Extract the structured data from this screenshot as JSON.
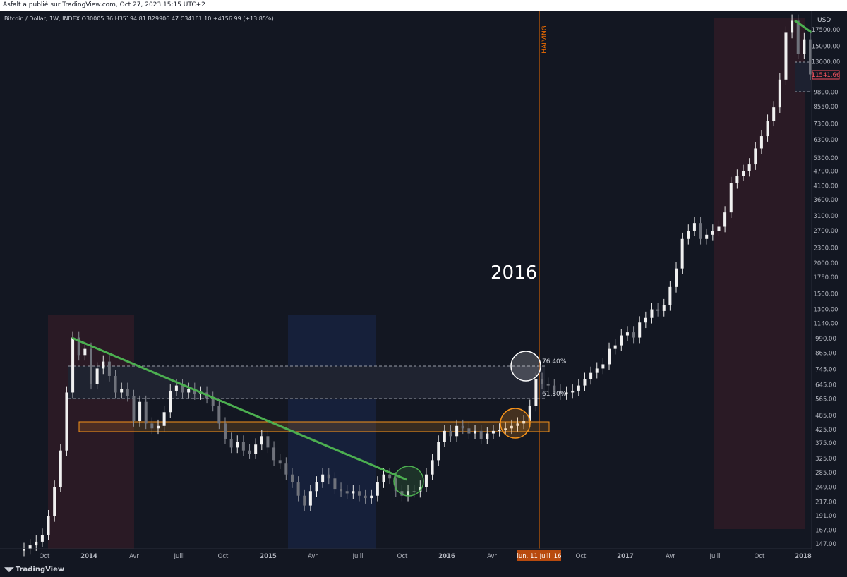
{
  "publisher_line": "Asfalt a publié sur TradingView.com, Oct 27, 2023 15:15 UTC+2",
  "symbol_line": "Bitcoin / Dollar, 1W, INDEX  O30005.36  H35194.81  B29906.47  C34161.10  +4156.99 (+13.85%)",
  "currency": "USD",
  "last_price_label": "11541.66",
  "annotation_text": "2016",
  "halving_label": "HALVING",
  "fib_labels": [
    "76.40%",
    "61.80%"
  ],
  "crosshair_date_label": "lun. 11 Juill '16",
  "footer_brand": "TradingView",
  "colors": {
    "background": "#131722",
    "candle": "#e8e8e8",
    "trendline": "#4caf50",
    "orange": "#f7931a",
    "halving": "#ef6c00",
    "last_price": "#f7525f"
  },
  "chart_data": {
    "type": "candlestick",
    "title": "",
    "xlabel": "",
    "ylabel": "",
    "y_scale": "log",
    "ylim": [
      137,
      22500
    ],
    "x_ticks": [
      "Oct",
      "2014",
      "Avr",
      "Juill",
      "Oct",
      "2015",
      "Avr",
      "Juill",
      "Oct",
      "2016",
      "Avr",
      "Juill",
      "Oct",
      "2017",
      "Avr",
      "Juill",
      "Oct",
      "2018"
    ],
    "y_ticks": [
      17500,
      15000,
      13000,
      9800,
      8550,
      7300,
      6300,
      5300,
      4700,
      4100,
      3600,
      3100,
      2700,
      2300,
      2000,
      1750,
      1500,
      1300,
      1140,
      990,
      865,
      745,
      645,
      565,
      485,
      425,
      375,
      325,
      285,
      249,
      217,
      191,
      167,
      147
    ],
    "y_tick_labels": [
      "17500.00",
      "15000.00",
      "13000.00",
      "9800.00",
      "8550.00",
      "7300.00",
      "6300.00",
      "5300.00",
      "4700.00",
      "4100.00",
      "3600.00",
      "3100.00",
      "2700.00",
      "2300.00",
      "2000.00",
      "1750.00",
      "1500.00",
      "1300.00",
      "1140.00",
      "990.00",
      "865.00",
      "745.00",
      "645.00",
      "565.00",
      "485.00",
      "425.00",
      "375.00",
      "325.00",
      "285.00",
      "249.00",
      "217.00",
      "191.00",
      "167.00",
      "147.00"
    ],
    "closes": [
      140,
      145,
      150,
      160,
      190,
      250,
      350,
      600,
      1000,
      850,
      900,
      650,
      750,
      800,
      700,
      600,
      620,
      580,
      460,
      550,
      450,
      430,
      440,
      500,
      610,
      640,
      600,
      620,
      590,
      600,
      570,
      530,
      450,
      390,
      360,
      380,
      350,
      340,
      370,
      400,
      360,
      320,
      310,
      280,
      260,
      230,
      210,
      240,
      260,
      280,
      270,
      245,
      240,
      235,
      240,
      230,
      225,
      230,
      260,
      280,
      270,
      240,
      230,
      240,
      238,
      250,
      280,
      320,
      380,
      420,
      400,
      440,
      430,
      410,
      420,
      390,
      410,
      420,
      425,
      430,
      440,
      450,
      460,
      530,
      680,
      650,
      640,
      610,
      590,
      600,
      610,
      640,
      680,
      720,
      750,
      780,
      900,
      930,
      1020,
      1050,
      1000,
      1150,
      1200,
      1300,
      1280,
      1350,
      1600,
      1900,
      2500,
      2700,
      2900,
      2500,
      2600,
      2700,
      2800,
      3200,
      4200,
      4500,
      4700,
      5000,
      5800,
      6500,
      7500,
      8500,
      11000,
      17000,
      19000,
      14000,
      16000,
      11541
    ],
    "levels": {
      "fib_76_4": 760,
      "fib_61_8": 560,
      "orange_zone": [
        420,
        460
      ]
    },
    "trendlines": [
      {
        "from": [
          "Nov 2013",
          1000
        ],
        "to": [
          "Oct 2015",
          265
        ]
      },
      {
        "from": [
          "Dec 2017",
          19000
        ],
        "to": [
          "Jan 2018",
          17000
        ]
      }
    ],
    "events": [
      {
        "label": "HALVING",
        "date": "Juill 2016"
      }
    ]
  }
}
